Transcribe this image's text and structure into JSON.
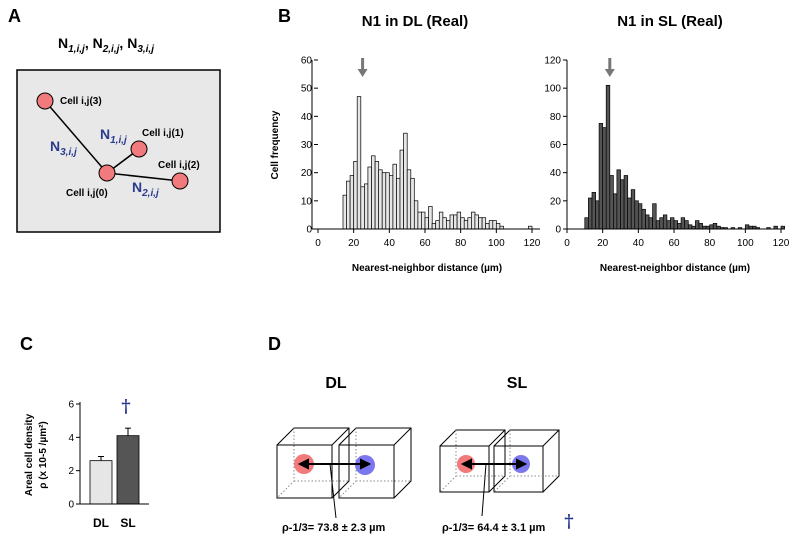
{
  "panels": {
    "A": {
      "label": "A",
      "header": {
        "N": "N",
        "subs": [
          "1,i,j",
          "2,i,j",
          "3,i,j"
        ],
        "sep": ", "
      },
      "cells": {
        "c3": "Cell i,j(3)",
        "c1": "Cell i,j(1)",
        "c2": "Cell i,j(2)",
        "c0": "Cell i,j(0)"
      },
      "edges": {
        "N": "N",
        "e1": "1,i,j",
        "e2": "2,i,j",
        "e3": "3,i,j"
      }
    },
    "B": {
      "label": "B"
    },
    "C": {
      "label": "C"
    },
    "D": {
      "label": "D",
      "dl_title": "DL",
      "sl_title": "SL",
      "dl_annotation": "ρ-1/3= 73.8 ± 2.3 µm",
      "sl_annotation": "ρ-1/3= 64.4 ± 3.1 µm",
      "sig_marker": "†"
    }
  },
  "colors": {
    "red": "#f07a7c",
    "blue": "#7b78ef",
    "navy": "#2a3b8f",
    "grey_arrow": "#777777",
    "light_bar": "#e6e6e6",
    "dark_bar": "#555555"
  },
  "chart_data": [
    {
      "type": "bar",
      "id": "dl-histogram",
      "title": "N1 in DL (Real)",
      "xlabel": "Nearest-neighbor distance (µm)",
      "ylabel": "Cell frequency",
      "xlim": [
        0,
        120
      ],
      "ylim": [
        0,
        60
      ],
      "xticks": [
        0,
        20,
        40,
        60,
        80,
        100,
        120
      ],
      "yticks": [
        0,
        10,
        20,
        30,
        40,
        50,
        60
      ],
      "bin_width": 2,
      "arrow_at": 25,
      "bins_start": [
        14,
        16,
        18,
        20,
        22,
        24,
        26,
        28,
        30,
        32,
        34,
        36,
        38,
        40,
        42,
        44,
        46,
        48,
        50,
        52,
        54,
        56,
        58,
        60,
        62,
        64,
        66,
        68,
        70,
        72,
        74,
        76,
        78,
        80,
        82,
        84,
        86,
        88,
        90,
        92,
        94,
        96,
        98,
        100,
        102,
        104,
        106,
        108,
        110,
        112,
        114,
        116,
        118
      ],
      "values": [
        12,
        17,
        19,
        24,
        47,
        15,
        16,
        22,
        26,
        24,
        21,
        20,
        20,
        19,
        23,
        18,
        28,
        34,
        21,
        18,
        10,
        6,
        6,
        4,
        8,
        2,
        3,
        6,
        4,
        3,
        5,
        5,
        6,
        4,
        3,
        4,
        6,
        5,
        4,
        4,
        2,
        3,
        3,
        2,
        1,
        0,
        0,
        0,
        0,
        0,
        0,
        0,
        1
      ]
    },
    {
      "type": "bar",
      "id": "sl-histogram",
      "title": "N1 in SL (Real)",
      "xlabel": "Nearest-neighbor distance (µm)",
      "xlim": [
        0,
        120
      ],
      "ylim": [
        0,
        120
      ],
      "xticks": [
        0,
        20,
        40,
        60,
        80,
        100,
        120
      ],
      "yticks": [
        0,
        20,
        40,
        60,
        80,
        100,
        120
      ],
      "bin_width": 2,
      "arrow_at": 24,
      "bins_start": [
        10,
        12,
        14,
        16,
        18,
        20,
        22,
        24,
        26,
        28,
        30,
        32,
        34,
        36,
        38,
        40,
        42,
        44,
        46,
        48,
        50,
        52,
        54,
        56,
        58,
        60,
        62,
        64,
        66,
        68,
        70,
        72,
        74,
        76,
        78,
        80,
        82,
        84,
        86,
        88,
        90,
        92,
        94,
        96,
        98,
        100,
        102,
        104,
        106,
        108,
        110,
        112,
        114,
        116,
        118,
        120
      ],
      "values": [
        8,
        22,
        26,
        20,
        75,
        72,
        102,
        38,
        25,
        42,
        35,
        38,
        22,
        28,
        20,
        18,
        14,
        10,
        8,
        18,
        6,
        8,
        10,
        6,
        8,
        6,
        4,
        8,
        6,
        3,
        2,
        6,
        4,
        2,
        2,
        3,
        4,
        2,
        1,
        1,
        0,
        1,
        0,
        1,
        0,
        3,
        2,
        2,
        1,
        0,
        0,
        1,
        0,
        2,
        0,
        2
      ]
    },
    {
      "type": "bar",
      "id": "density-bars",
      "ylabel_line1": "Areal cell density",
      "ylabel_line2": "ρ (x 10-5 /µm²)",
      "categories": [
        "DL",
        "SL"
      ],
      "values": [
        2.6,
        4.1
      ],
      "errors": [
        0.25,
        0.45
      ],
      "ylim": [
        0,
        6
      ],
      "yticks": [
        0,
        2,
        4,
        6
      ],
      "significance": "†"
    }
  ]
}
